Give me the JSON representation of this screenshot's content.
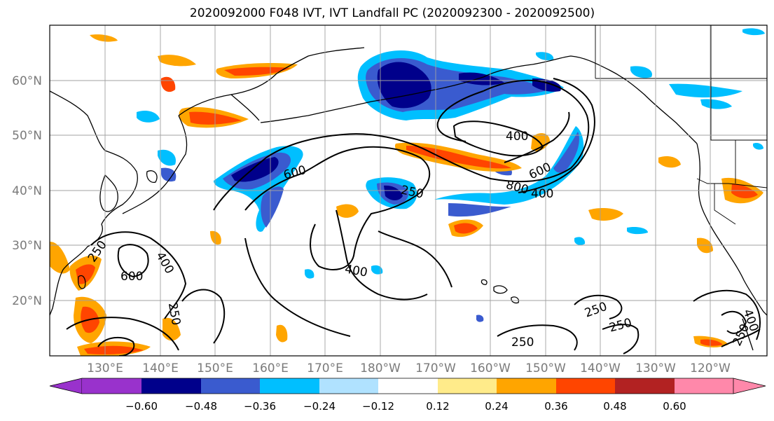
{
  "title": "2020092000 F048 IVT, IVT Landfall PC (2020092300 - 2020092500)",
  "map": {
    "lat_labels": [
      "60°N",
      "50°N",
      "40°N",
      "30°N",
      "20°N"
    ],
    "lon_labels": [
      "130°E",
      "140°E",
      "150°E",
      "160°E",
      "170°E",
      "180°W",
      "170°W",
      "160°W",
      "150°W",
      "140°W",
      "130°W",
      "120°W"
    ],
    "contour_labels": [
      "400",
      "600",
      "800",
      "400",
      "250",
      "400",
      "600",
      "400",
      "250",
      "250",
      "250",
      "250",
      "400",
      "250",
      "600",
      "250"
    ]
  },
  "colorbar": {
    "colors": [
      "#9932cc",
      "#00008b",
      "#3a5bcf",
      "#00bfff",
      "#b0e2ff",
      "#ffffff",
      "#ffeb8a",
      "#ffa500",
      "#ff4500",
      "#b22222",
      "#ff88aa"
    ],
    "ticks": [
      "−0.60",
      "−0.48",
      "−0.36",
      "−0.24",
      "−0.12",
      "0.12",
      "0.24",
      "0.36",
      "0.48",
      "0.60"
    ]
  }
}
